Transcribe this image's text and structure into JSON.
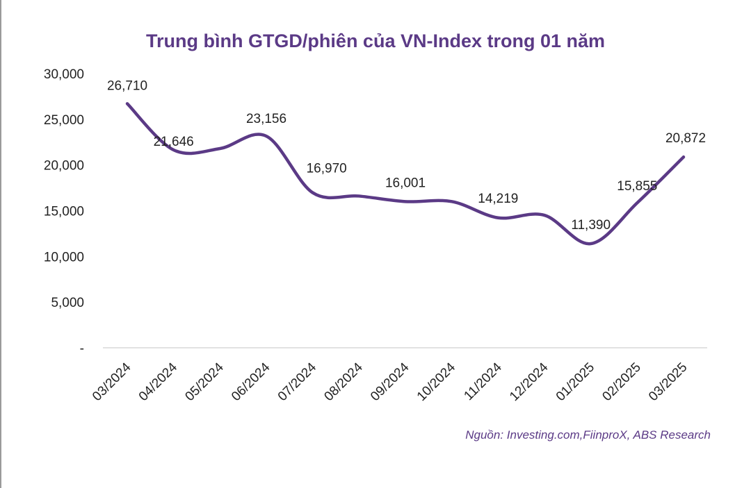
{
  "source_note": "Nguồn: Investing.com,FiinproX, ABS Research",
  "colors": {
    "line": "#5b3a86",
    "title": "#5b3a86",
    "axis": "#d9d9d9",
    "text": "#222222"
  },
  "chart_data": {
    "type": "line",
    "title": "Trung bình GTGD/phiên của VN-Index trong 01 năm",
    "xlabel": "",
    "ylabel": "",
    "categories": [
      "03/2024",
      "04/2024",
      "05/2024",
      "06/2024",
      "07/2024",
      "08/2024",
      "09/2024",
      "10/2024",
      "11/2024",
      "12/2024",
      "01/2025",
      "02/2025",
      "03/2025"
    ],
    "series": [
      {
        "values": [
          26710,
          21646,
          21800,
          23156,
          16970,
          16600,
          16001,
          16000,
          14219,
          14500,
          11390,
          15855,
          20872
        ]
      }
    ],
    "data_labels": [
      {
        "index": 0,
        "text": "26,710"
      },
      {
        "index": 1,
        "text": "21,646"
      },
      {
        "index": 3,
        "text": "23,156"
      },
      {
        "index": 4,
        "text": "16,970"
      },
      {
        "index": 6,
        "text": "16,001"
      },
      {
        "index": 8,
        "text": "14,219"
      },
      {
        "index": 10,
        "text": "11,390"
      },
      {
        "index": 11,
        "text": "15,855"
      },
      {
        "index": 12,
        "text": "20,872"
      }
    ],
    "yticks": [
      {
        "value": 0,
        "label": "-"
      },
      {
        "value": 5000,
        "label": "5,000"
      },
      {
        "value": 10000,
        "label": "10,000"
      },
      {
        "value": 15000,
        "label": "15,000"
      },
      {
        "value": 20000,
        "label": "20,000"
      },
      {
        "value": 25000,
        "label": "25,000"
      },
      {
        "value": 30000,
        "label": "30,000"
      }
    ],
    "ylim": [
      0,
      30000
    ],
    "grid": false,
    "legend": "none"
  }
}
